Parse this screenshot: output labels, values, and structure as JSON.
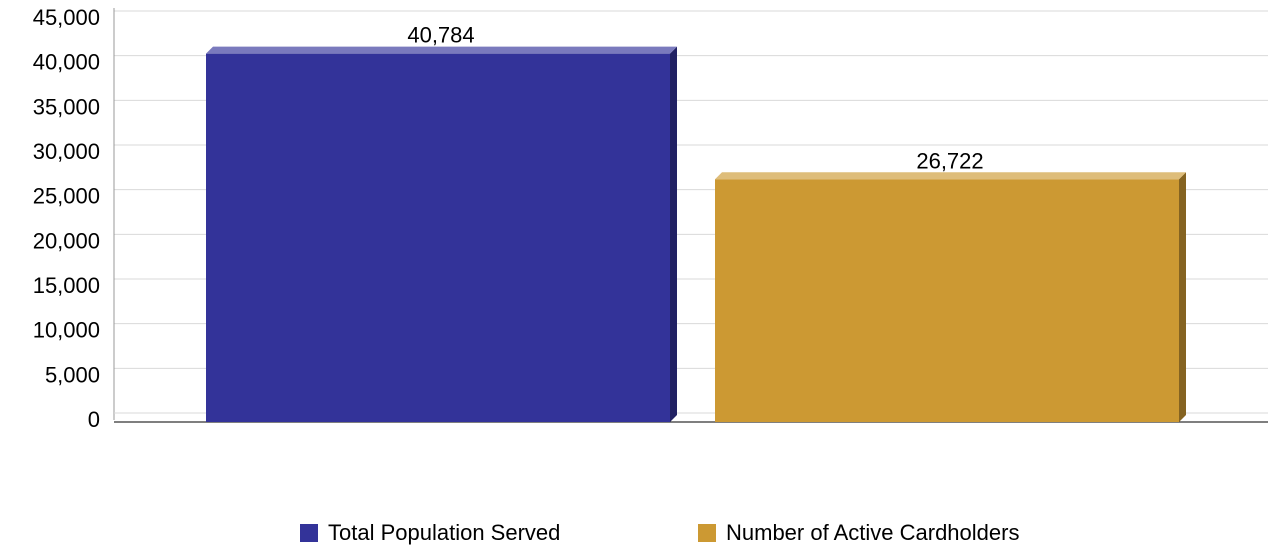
{
  "chart_data": {
    "type": "bar",
    "categories": [
      "Total Population Served",
      "Number of Active Cardholders"
    ],
    "values": [
      40784,
      26722
    ],
    "value_labels": [
      "40,784",
      "26,722"
    ],
    "colors": [
      "#333399",
      "#cc9933"
    ],
    "ylim": [
      0,
      45000
    ],
    "yticks": [
      0,
      5000,
      10000,
      15000,
      20000,
      25000,
      30000,
      35000,
      40000,
      45000
    ],
    "ytick_labels": [
      "0",
      "5,000",
      "10,000",
      "15,000",
      "20,000",
      "25,000",
      "30,000",
      "35,000",
      "40,000",
      "45,000"
    ],
    "grid": true,
    "legend_position": "bottom",
    "title": "",
    "xlabel": "",
    "ylabel": ""
  },
  "legend": {
    "items": [
      {
        "label": "Total Population Served",
        "color": "#333399"
      },
      {
        "label": "Number of Active Cardholders",
        "color": "#cc9933"
      }
    ]
  }
}
